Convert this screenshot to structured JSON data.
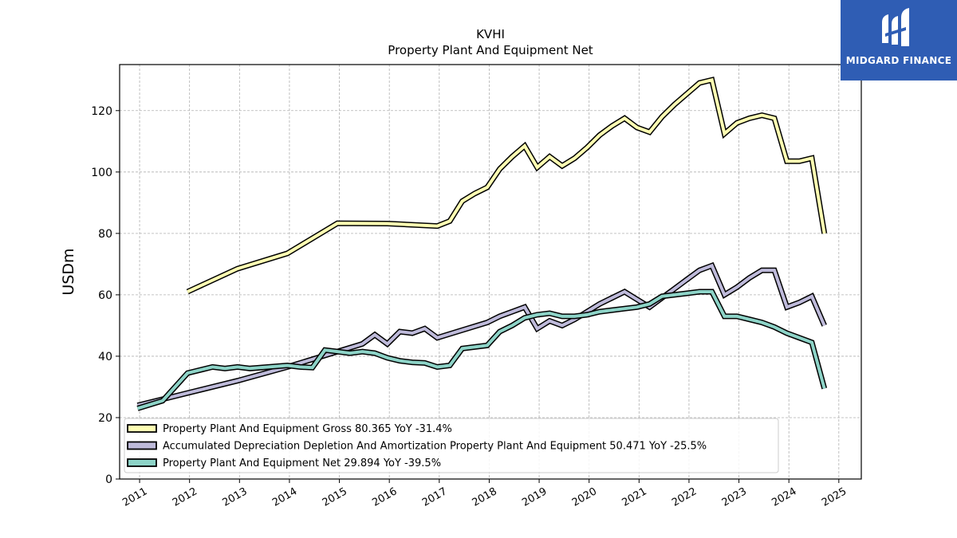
{
  "logo": {
    "text": "MIDGARD FINANCE",
    "bg_color": "#2f5db4"
  },
  "chart_data": {
    "type": "line",
    "title": "KVHI",
    "subtitle": "Property Plant And Equipment Net",
    "xlabel": "",
    "ylabel": "USDm",
    "xlim": [
      2010.6,
      2025.45
    ],
    "ylim": [
      0,
      135
    ],
    "x_ticks": [
      2011,
      2012,
      2013,
      2014,
      2015,
      2016,
      2017,
      2018,
      2019,
      2020,
      2021,
      2022,
      2023,
      2024,
      2025
    ],
    "x_tick_labels": [
      "2011",
      "2012",
      "2013",
      "2014",
      "2015",
      "2016",
      "2017",
      "2018",
      "2019",
      "2020",
      "2021",
      "2022",
      "2023",
      "2024",
      "2025"
    ],
    "y_ticks": [
      0,
      20,
      40,
      60,
      80,
      100,
      120
    ],
    "y_tick_labels": [
      "0",
      "20",
      "40",
      "60",
      "80",
      "100",
      "120"
    ],
    "grid": true,
    "legend_position": "bottom-left",
    "series": [
      {
        "name": "Property Plant And Equipment Gross",
        "legend_label": "Property Plant And Equipment Gross  80.365 YoY -31.4%",
        "color": "#ffffb3",
        "points": [
          [
            2011.96,
            61
          ],
          [
            2012.96,
            68.5
          ],
          [
            2013.96,
            73.5
          ],
          [
            2014.96,
            83.3
          ],
          [
            2015.96,
            83.2
          ],
          [
            2016.96,
            82.4
          ],
          [
            2017.21,
            84
          ],
          [
            2017.46,
            90.5
          ],
          [
            2017.71,
            93
          ],
          [
            2017.96,
            95
          ],
          [
            2018.21,
            101
          ],
          [
            2018.46,
            105
          ],
          [
            2018.71,
            108.5
          ],
          [
            2018.96,
            101.5
          ],
          [
            2019.21,
            105
          ],
          [
            2019.46,
            102
          ],
          [
            2019.71,
            104.5
          ],
          [
            2019.96,
            108
          ],
          [
            2020.21,
            112
          ],
          [
            2020.46,
            115
          ],
          [
            2020.71,
            117.5
          ],
          [
            2020.96,
            114.5
          ],
          [
            2021.21,
            113
          ],
          [
            2021.46,
            118
          ],
          [
            2021.71,
            122
          ],
          [
            2021.96,
            125.5
          ],
          [
            2022.21,
            129
          ],
          [
            2022.46,
            130
          ],
          [
            2022.71,
            112.5
          ],
          [
            2022.96,
            116
          ],
          [
            2023.21,
            117.5
          ],
          [
            2023.46,
            118.5
          ],
          [
            2023.71,
            117.5
          ],
          [
            2023.96,
            103.5
          ],
          [
            2024.21,
            103.5
          ],
          [
            2024.46,
            104.5
          ],
          [
            2024.71,
            80
          ]
        ]
      },
      {
        "name": "Accumulated Depreciation Depletion And Amortization Property Plant And Equipment",
        "legend_label": "Accumulated Depreciation Depletion And Amortization Property Plant And Equipment  50.471 YoY -25.5%",
        "color": "#bebada",
        "points": [
          [
            2010.96,
            24
          ],
          [
            2011.46,
            26
          ],
          [
            2011.96,
            28
          ],
          [
            2012.96,
            32
          ],
          [
            2013.96,
            36.5
          ],
          [
            2014.96,
            41.5
          ],
          [
            2015.46,
            44
          ],
          [
            2015.71,
            47
          ],
          [
            2015.96,
            44
          ],
          [
            2016.21,
            48
          ],
          [
            2016.46,
            47.5
          ],
          [
            2016.71,
            49
          ],
          [
            2016.96,
            46
          ],
          [
            2017.46,
            48.5
          ],
          [
            2017.96,
            51
          ],
          [
            2018.21,
            53
          ],
          [
            2018.46,
            54.5
          ],
          [
            2018.71,
            56
          ],
          [
            2018.96,
            49
          ],
          [
            2019.21,
            51.5
          ],
          [
            2019.46,
            50
          ],
          [
            2019.71,
            52
          ],
          [
            2019.96,
            54.5
          ],
          [
            2020.21,
            57
          ],
          [
            2020.46,
            59
          ],
          [
            2020.71,
            61
          ],
          [
            2020.96,
            58.5
          ],
          [
            2021.21,
            56
          ],
          [
            2021.46,
            59
          ],
          [
            2021.71,
            62
          ],
          [
            2021.96,
            65
          ],
          [
            2022.21,
            68
          ],
          [
            2022.46,
            69.5
          ],
          [
            2022.71,
            60
          ],
          [
            2022.96,
            62.5
          ],
          [
            2023.21,
            65.5
          ],
          [
            2023.46,
            68
          ],
          [
            2023.71,
            68
          ],
          [
            2023.96,
            56
          ],
          [
            2024.21,
            57.5
          ],
          [
            2024.46,
            59.5
          ],
          [
            2024.71,
            50
          ]
        ]
      },
      {
        "name": "Property Plant And Equipment Net",
        "legend_label": "Property Plant And Equipment Net  29.894 YoY -39.5%",
        "color": "#8dd3c7",
        "points": [
          [
            2010.96,
            23
          ],
          [
            2011.46,
            25.5
          ],
          [
            2011.96,
            34.5
          ],
          [
            2012.46,
            36.5
          ],
          [
            2012.71,
            36
          ],
          [
            2012.96,
            36.5
          ],
          [
            2013.21,
            36
          ],
          [
            2013.96,
            37
          ],
          [
            2014.21,
            36.5
          ],
          [
            2014.46,
            36.3
          ],
          [
            2014.71,
            42
          ],
          [
            2014.96,
            41.5
          ],
          [
            2015.21,
            41
          ],
          [
            2015.46,
            41.5
          ],
          [
            2015.71,
            41
          ],
          [
            2015.96,
            39.5
          ],
          [
            2016.21,
            38.5
          ],
          [
            2016.46,
            38
          ],
          [
            2016.71,
            37.8
          ],
          [
            2016.96,
            36.5
          ],
          [
            2017.21,
            37
          ],
          [
            2017.46,
            42.5
          ],
          [
            2017.96,
            43.5
          ],
          [
            2018.21,
            48
          ],
          [
            2018.46,
            50
          ],
          [
            2018.71,
            52.5
          ],
          [
            2018.96,
            53.5
          ],
          [
            2019.21,
            54
          ],
          [
            2019.46,
            53
          ],
          [
            2019.71,
            53
          ],
          [
            2019.96,
            53.5
          ],
          [
            2020.21,
            54.5
          ],
          [
            2020.46,
            55
          ],
          [
            2020.71,
            55.5
          ],
          [
            2020.96,
            56
          ],
          [
            2021.21,
            57
          ],
          [
            2021.46,
            59.5
          ],
          [
            2021.71,
            60
          ],
          [
            2021.96,
            60.5
          ],
          [
            2022.21,
            61
          ],
          [
            2022.46,
            61
          ],
          [
            2022.71,
            53
          ],
          [
            2022.96,
            53
          ],
          [
            2023.21,
            52
          ],
          [
            2023.46,
            51
          ],
          [
            2023.71,
            49.5
          ],
          [
            2023.96,
            47.5
          ],
          [
            2024.21,
            46
          ],
          [
            2024.46,
            44.5
          ],
          [
            2024.71,
            29.5
          ]
        ]
      }
    ]
  }
}
